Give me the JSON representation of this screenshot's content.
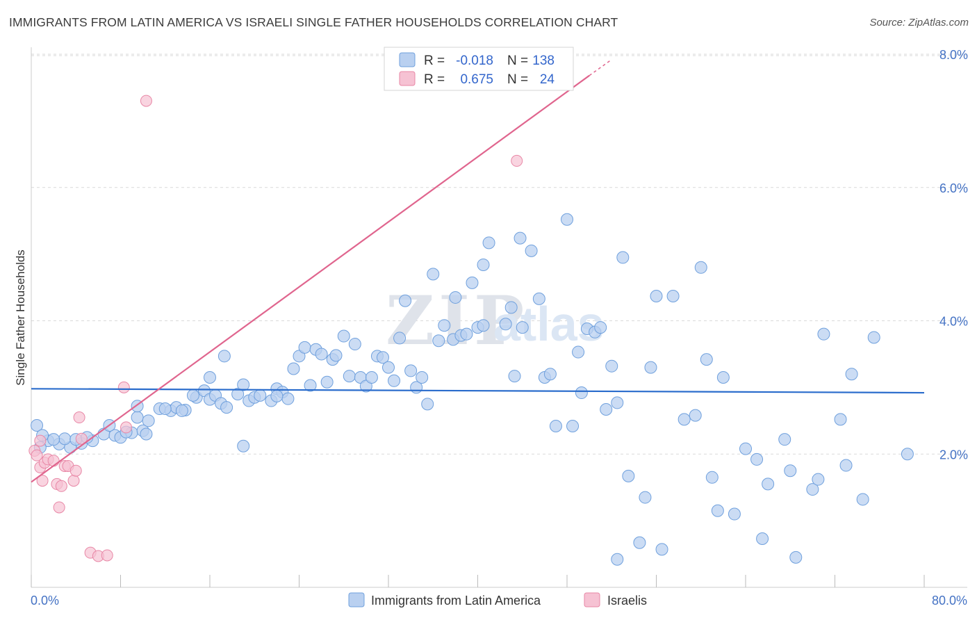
{
  "title": "IMMIGRANTS FROM LATIN AMERICA VS ISRAELI SINGLE FATHER HOUSEHOLDS CORRELATION CHART",
  "source": "Source: ZipAtlas.com",
  "watermark": {
    "part1": "ZIP",
    "part2": "atlas"
  },
  "colors": {
    "blue": "#6fa0dd",
    "blue_fill": "#b9d0f0",
    "blue_line": "#2a6ccc",
    "pink": "#e887a6",
    "pink_fill": "#f6c2d3",
    "pink_line": "#e0658e",
    "tick": "#4472c4",
    "grid": "#d9d9d9"
  },
  "legend": {
    "rows": [
      {
        "r_label": "R =",
        "r_value": "-0.018",
        "n_label": "N =",
        "n_value": "138",
        "color": "blue"
      },
      {
        "r_label": "R =",
        "r_value": "0.675",
        "n_label": "N =",
        "n_value": "24",
        "color": "pink"
      }
    ]
  },
  "bottom_legend": [
    {
      "label": "Immigrants from Latin America",
      "color": "blue"
    },
    {
      "label": "Israelis",
      "color": "pink"
    }
  ],
  "chart_data": {
    "type": "scatter",
    "title": "IMMIGRANTS FROM LATIN AMERICA VS ISRAELI SINGLE FATHER HOUSEHOLDS CORRELATION CHART",
    "xlabel": "",
    "ylabel": "Single Father Households",
    "xlim": [
      0,
      80
    ],
    "ylim": [
      0,
      8
    ],
    "x_tick_labels": [
      {
        "value": 0,
        "label": "0.0%"
      },
      {
        "value": 80,
        "label": "80.0%"
      }
    ],
    "y_tick_labels": [
      {
        "value": 2,
        "label": "2.0%"
      },
      {
        "value": 4,
        "label": "4.0%"
      },
      {
        "value": 6,
        "label": "6.0%"
      },
      {
        "value": 8,
        "label": "8.0%"
      }
    ],
    "grid": "horizontal dashed",
    "legend_position": "top-center",
    "series": [
      {
        "name": "Immigrants from Latin America",
        "color": "blue",
        "trend": {
          "x0": 0,
          "y0": 2.98,
          "x1": 80,
          "y1": 2.92
        },
        "points": [
          [
            0.5,
            2.43
          ],
          [
            1.5,
            2.2
          ],
          [
            2.5,
            2.15
          ],
          [
            3.5,
            2.1
          ],
          [
            1.0,
            2.28
          ],
          [
            3.0,
            2.23
          ],
          [
            4.5,
            2.16
          ],
          [
            5.5,
            2.2
          ],
          [
            6.5,
            2.3
          ],
          [
            7.5,
            2.28
          ],
          [
            8.0,
            2.25
          ],
          [
            9.0,
            2.32
          ],
          [
            7.0,
            2.43
          ],
          [
            10.0,
            2.35
          ],
          [
            8.5,
            2.33
          ],
          [
            9.5,
            2.55
          ],
          [
            10.5,
            2.5
          ],
          [
            10.3,
            2.3
          ],
          [
            11.5,
            2.68
          ],
          [
            12.5,
            2.65
          ],
          [
            13.0,
            2.7
          ],
          [
            13.8,
            2.66
          ],
          [
            9.5,
            2.72
          ],
          [
            14.8,
            2.85
          ],
          [
            15.5,
            2.95
          ],
          [
            16.0,
            2.82
          ],
          [
            16.5,
            2.88
          ],
          [
            17.0,
            2.76
          ],
          [
            17.5,
            2.7
          ],
          [
            18.5,
            2.9
          ],
          [
            19.0,
            3.04
          ],
          [
            19.5,
            2.8
          ],
          [
            20.0,
            2.85
          ],
          [
            20.5,
            2.88
          ],
          [
            21.5,
            2.8
          ],
          [
            22.0,
            2.98
          ],
          [
            22.5,
            2.93
          ],
          [
            23.0,
            2.83
          ],
          [
            14.5,
            2.88
          ],
          [
            12.0,
            2.68
          ],
          [
            13.5,
            2.65
          ],
          [
            16.0,
            3.15
          ],
          [
            17.3,
            3.47
          ],
          [
            23.5,
            3.28
          ],
          [
            24.0,
            3.47
          ],
          [
            24.5,
            3.6
          ],
          [
            25.0,
            3.03
          ],
          [
            25.5,
            3.57
          ],
          [
            26.0,
            3.5
          ],
          [
            26.5,
            3.08
          ],
          [
            27.0,
            3.42
          ],
          [
            27.3,
            3.48
          ],
          [
            28.0,
            3.77
          ],
          [
            28.5,
            3.17
          ],
          [
            29.0,
            3.65
          ],
          [
            29.5,
            3.15
          ],
          [
            30.0,
            3.02
          ],
          [
            30.5,
            3.15
          ],
          [
            31.0,
            3.47
          ],
          [
            31.5,
            3.45
          ],
          [
            32.0,
            3.3
          ],
          [
            32.5,
            3.1
          ],
          [
            33.0,
            3.74
          ],
          [
            33.5,
            4.3
          ],
          [
            34.0,
            3.25
          ],
          [
            34.5,
            3.0
          ],
          [
            35.0,
            3.15
          ],
          [
            35.5,
            2.75
          ],
          [
            36.0,
            4.7
          ],
          [
            36.5,
            3.7
          ],
          [
            37.0,
            3.93
          ],
          [
            37.8,
            3.72
          ],
          [
            38.0,
            4.35
          ],
          [
            38.5,
            3.78
          ],
          [
            39.0,
            3.8
          ],
          [
            39.5,
            4.57
          ],
          [
            40.0,
            3.9
          ],
          [
            40.5,
            4.84
          ],
          [
            41.0,
            5.17
          ],
          [
            42.5,
            3.95
          ],
          [
            43.0,
            4.2
          ],
          [
            43.3,
            3.17
          ],
          [
            43.8,
            5.24
          ],
          [
            44.0,
            3.9
          ],
          [
            44.8,
            5.05
          ],
          [
            45.5,
            4.33
          ],
          [
            46.0,
            3.15
          ],
          [
            46.5,
            3.2
          ],
          [
            47.0,
            2.42
          ],
          [
            48.0,
            5.52
          ],
          [
            48.5,
            2.42
          ],
          [
            49.0,
            3.53
          ],
          [
            49.3,
            2.92
          ],
          [
            49.8,
            3.88
          ],
          [
            50.5,
            3.83
          ],
          [
            51.0,
            3.9
          ],
          [
            51.5,
            2.67
          ],
          [
            52.0,
            3.32
          ],
          [
            52.5,
            2.77
          ],
          [
            53.0,
            4.95
          ],
          [
            53.5,
            1.67
          ],
          [
            54.5,
            0.67
          ],
          [
            55.0,
            1.35
          ],
          [
            55.5,
            3.3
          ],
          [
            56.0,
            4.37
          ],
          [
            56.5,
            0.57
          ],
          [
            57.5,
            4.37
          ],
          [
            58.5,
            2.52
          ],
          [
            59.5,
            2.58
          ],
          [
            60.0,
            4.8
          ],
          [
            60.5,
            3.42
          ],
          [
            61.0,
            1.65
          ],
          [
            61.5,
            1.15
          ],
          [
            62.0,
            3.15
          ],
          [
            63.0,
            1.1
          ],
          [
            64.0,
            2.08
          ],
          [
            65.0,
            1.92
          ],
          [
            65.5,
            0.73
          ],
          [
            66.0,
            1.55
          ],
          [
            67.5,
            2.22
          ],
          [
            68.0,
            1.75
          ],
          [
            68.5,
            0.45
          ],
          [
            70.0,
            1.47
          ],
          [
            70.5,
            1.62
          ],
          [
            71.0,
            3.8
          ],
          [
            72.5,
            2.52
          ],
          [
            73.0,
            1.83
          ],
          [
            73.5,
            3.2
          ],
          [
            74.5,
            1.32
          ],
          [
            75.5,
            3.75
          ],
          [
            78.5,
            2.0
          ],
          [
            52.5,
            0.42
          ],
          [
            19.0,
            2.12
          ],
          [
            0.8,
            2.1
          ],
          [
            2.0,
            2.22
          ],
          [
            4.0,
            2.22
          ],
          [
            5.0,
            2.25
          ],
          [
            22.0,
            2.87
          ],
          [
            40.5,
            3.93
          ]
        ]
      },
      {
        "name": "Israelis",
        "color": "pink",
        "trend": {
          "x0": 0,
          "y0": 1.58,
          "x1": 50,
          "y1": 7.68,
          "dashed_to": {
            "x": 52,
            "y": 7.92
          }
        },
        "points": [
          [
            0.3,
            2.05
          ],
          [
            0.8,
            1.8
          ],
          [
            1.0,
            1.6
          ],
          [
            1.2,
            1.87
          ],
          [
            1.5,
            1.92
          ],
          [
            0.5,
            1.98
          ],
          [
            2.0,
            1.9
          ],
          [
            2.3,
            1.55
          ],
          [
            2.5,
            1.2
          ],
          [
            2.7,
            1.52
          ],
          [
            3.0,
            1.82
          ],
          [
            3.3,
            1.82
          ],
          [
            3.8,
            1.6
          ],
          [
            4.0,
            1.75
          ],
          [
            4.3,
            2.55
          ],
          [
            4.5,
            2.23
          ],
          [
            5.3,
            0.52
          ],
          [
            6.0,
            0.47
          ],
          [
            6.8,
            0.48
          ],
          [
            8.3,
            3.0
          ],
          [
            8.5,
            2.4
          ],
          [
            10.3,
            7.3
          ],
          [
            43.5,
            6.4
          ],
          [
            0.8,
            2.2
          ]
        ]
      }
    ]
  }
}
